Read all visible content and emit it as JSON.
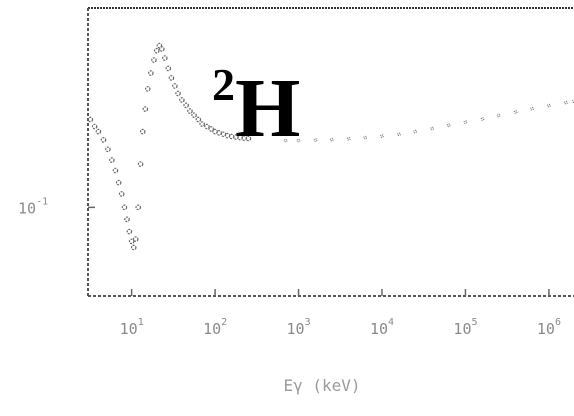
{
  "chart_data": {
    "type": "scatter",
    "title": "",
    "xlabel": "Eγ (keV)",
    "ylabel": "",
    "x_scale": "log",
    "xlim": [
      3,
      2000000
    ],
    "y_scale": "log",
    "ylim": [
      0.03,
      1.5
    ],
    "annotation": {
      "superscript": "2",
      "text": "H"
    },
    "x_ticks": [
      {
        "base": "10",
        "exp": "1",
        "value": 10
      },
      {
        "base": "10",
        "exp": "2",
        "value": 100
      },
      {
        "base": "10",
        "exp": "3",
        "value": 1000
      },
      {
        "base": "10",
        "exp": "4",
        "value": 10000
      },
      {
        "base": "10",
        "exp": "5",
        "value": 100000
      },
      {
        "base": "10",
        "exp": "6",
        "value": 1000000
      }
    ],
    "y_ticks": [
      {
        "base": "10",
        "exp": "-1",
        "value": 0.1
      }
    ],
    "series": [
      {
        "color": "#666666",
        "points": [
          [
            3.2,
            0.33
          ],
          [
            3.6,
            0.3
          ],
          [
            4.0,
            0.28
          ],
          [
            4.6,
            0.25
          ],
          [
            5.2,
            0.22
          ],
          [
            5.8,
            0.19
          ],
          [
            6.4,
            0.165
          ],
          [
            7.0,
            0.14
          ],
          [
            7.6,
            0.12
          ],
          [
            8.2,
            0.1
          ],
          [
            8.8,
            0.085
          ],
          [
            9.4,
            0.072
          ],
          [
            10.0,
            0.063
          ],
          [
            10.6,
            0.058
          ],
          [
            11.2,
            0.065
          ],
          [
            12.0,
            0.1
          ],
          [
            12.8,
            0.18
          ],
          [
            13.6,
            0.28
          ],
          [
            14.6,
            0.38
          ],
          [
            15.6,
            0.5
          ],
          [
            17.0,
            0.62
          ],
          [
            18.5,
            0.74
          ],
          [
            20.0,
            0.84
          ],
          [
            21.5,
            0.9
          ],
          [
            23.0,
            0.86
          ],
          [
            25.0,
            0.76
          ],
          [
            27.5,
            0.66
          ],
          [
            30.0,
            0.58
          ],
          [
            33.0,
            0.52
          ],
          [
            36.0,
            0.47
          ],
          [
            40.0,
            0.43
          ],
          [
            45.0,
            0.4
          ],
          [
            50.0,
            0.37
          ],
          [
            56.0,
            0.35
          ],
          [
            63.0,
            0.33
          ],
          [
            70.0,
            0.31
          ],
          [
            80.0,
            0.3
          ],
          [
            90.0,
            0.29
          ],
          [
            100.0,
            0.28
          ],
          [
            112.0,
            0.275
          ],
          [
            126.0,
            0.27
          ],
          [
            141.0,
            0.265
          ],
          [
            158.0,
            0.262
          ],
          [
            178.0,
            0.26
          ],
          [
            200.0,
            0.258
          ],
          [
            224.0,
            0.256
          ],
          [
            251.0,
            0.255
          ]
        ]
      },
      {
        "color": "#777777",
        "points": [
          [
            700,
            0.248
          ],
          [
            1000,
            0.248
          ],
          [
            1600,
            0.249
          ],
          [
            2500,
            0.251
          ],
          [
            4000,
            0.254
          ],
          [
            6300,
            0.258
          ],
          [
            10000,
            0.263
          ],
          [
            16000,
            0.27
          ],
          [
            25000,
            0.28
          ],
          [
            40000,
            0.292
          ],
          [
            63000,
            0.305
          ],
          [
            100000,
            0.318
          ],
          [
            160000,
            0.332
          ],
          [
            250000,
            0.348
          ],
          [
            400000,
            0.365
          ],
          [
            630000,
            0.382
          ],
          [
            1000000,
            0.398
          ],
          [
            1600000,
            0.415
          ],
          [
            2000000,
            0.423
          ]
        ]
      }
    ]
  }
}
